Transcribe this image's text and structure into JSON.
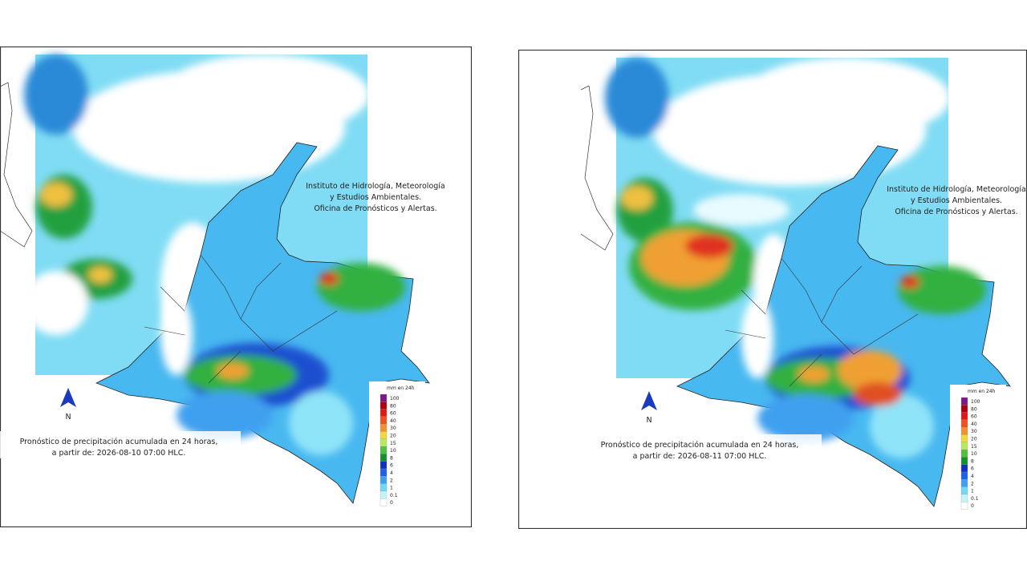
{
  "panels": [
    {
      "institute": [
        "Instituto de Hidrología, Meteorología",
        "y Estudios Ambientales.",
        "Oficina de Pronósticos y Alertas."
      ],
      "north": "N",
      "caption": [
        "Pronóstico de precipitación acumulada en 24 horas,",
        "a partir de: 2026-08-10 07:00 HLC."
      ],
      "legend": {
        "title": "mm en 24h",
        "labels": [
          "100",
          "80",
          "60",
          "40",
          "30",
          "20",
          "15",
          "10",
          "8",
          "6",
          "4",
          "2",
          "1",
          "0.1",
          "0"
        ]
      }
    },
    {
      "institute": [
        "Instituto de Hidrología, Meteorología",
        "y Estudios Ambientales.",
        "Oficina de Pronósticos y Alertas."
      ],
      "north": "N",
      "caption": [
        "Pronóstico de precipitación acumulada en 24 horas,",
        "a partir de: 2026-08-11 07:00 HLC."
      ],
      "legend": {
        "title": "mm en 24h",
        "labels": [
          "100",
          "80",
          "60",
          "40",
          "30",
          "20",
          "15",
          "10",
          "8",
          "6",
          "4",
          "2",
          "1",
          "0.1",
          "0"
        ]
      }
    }
  ]
}
